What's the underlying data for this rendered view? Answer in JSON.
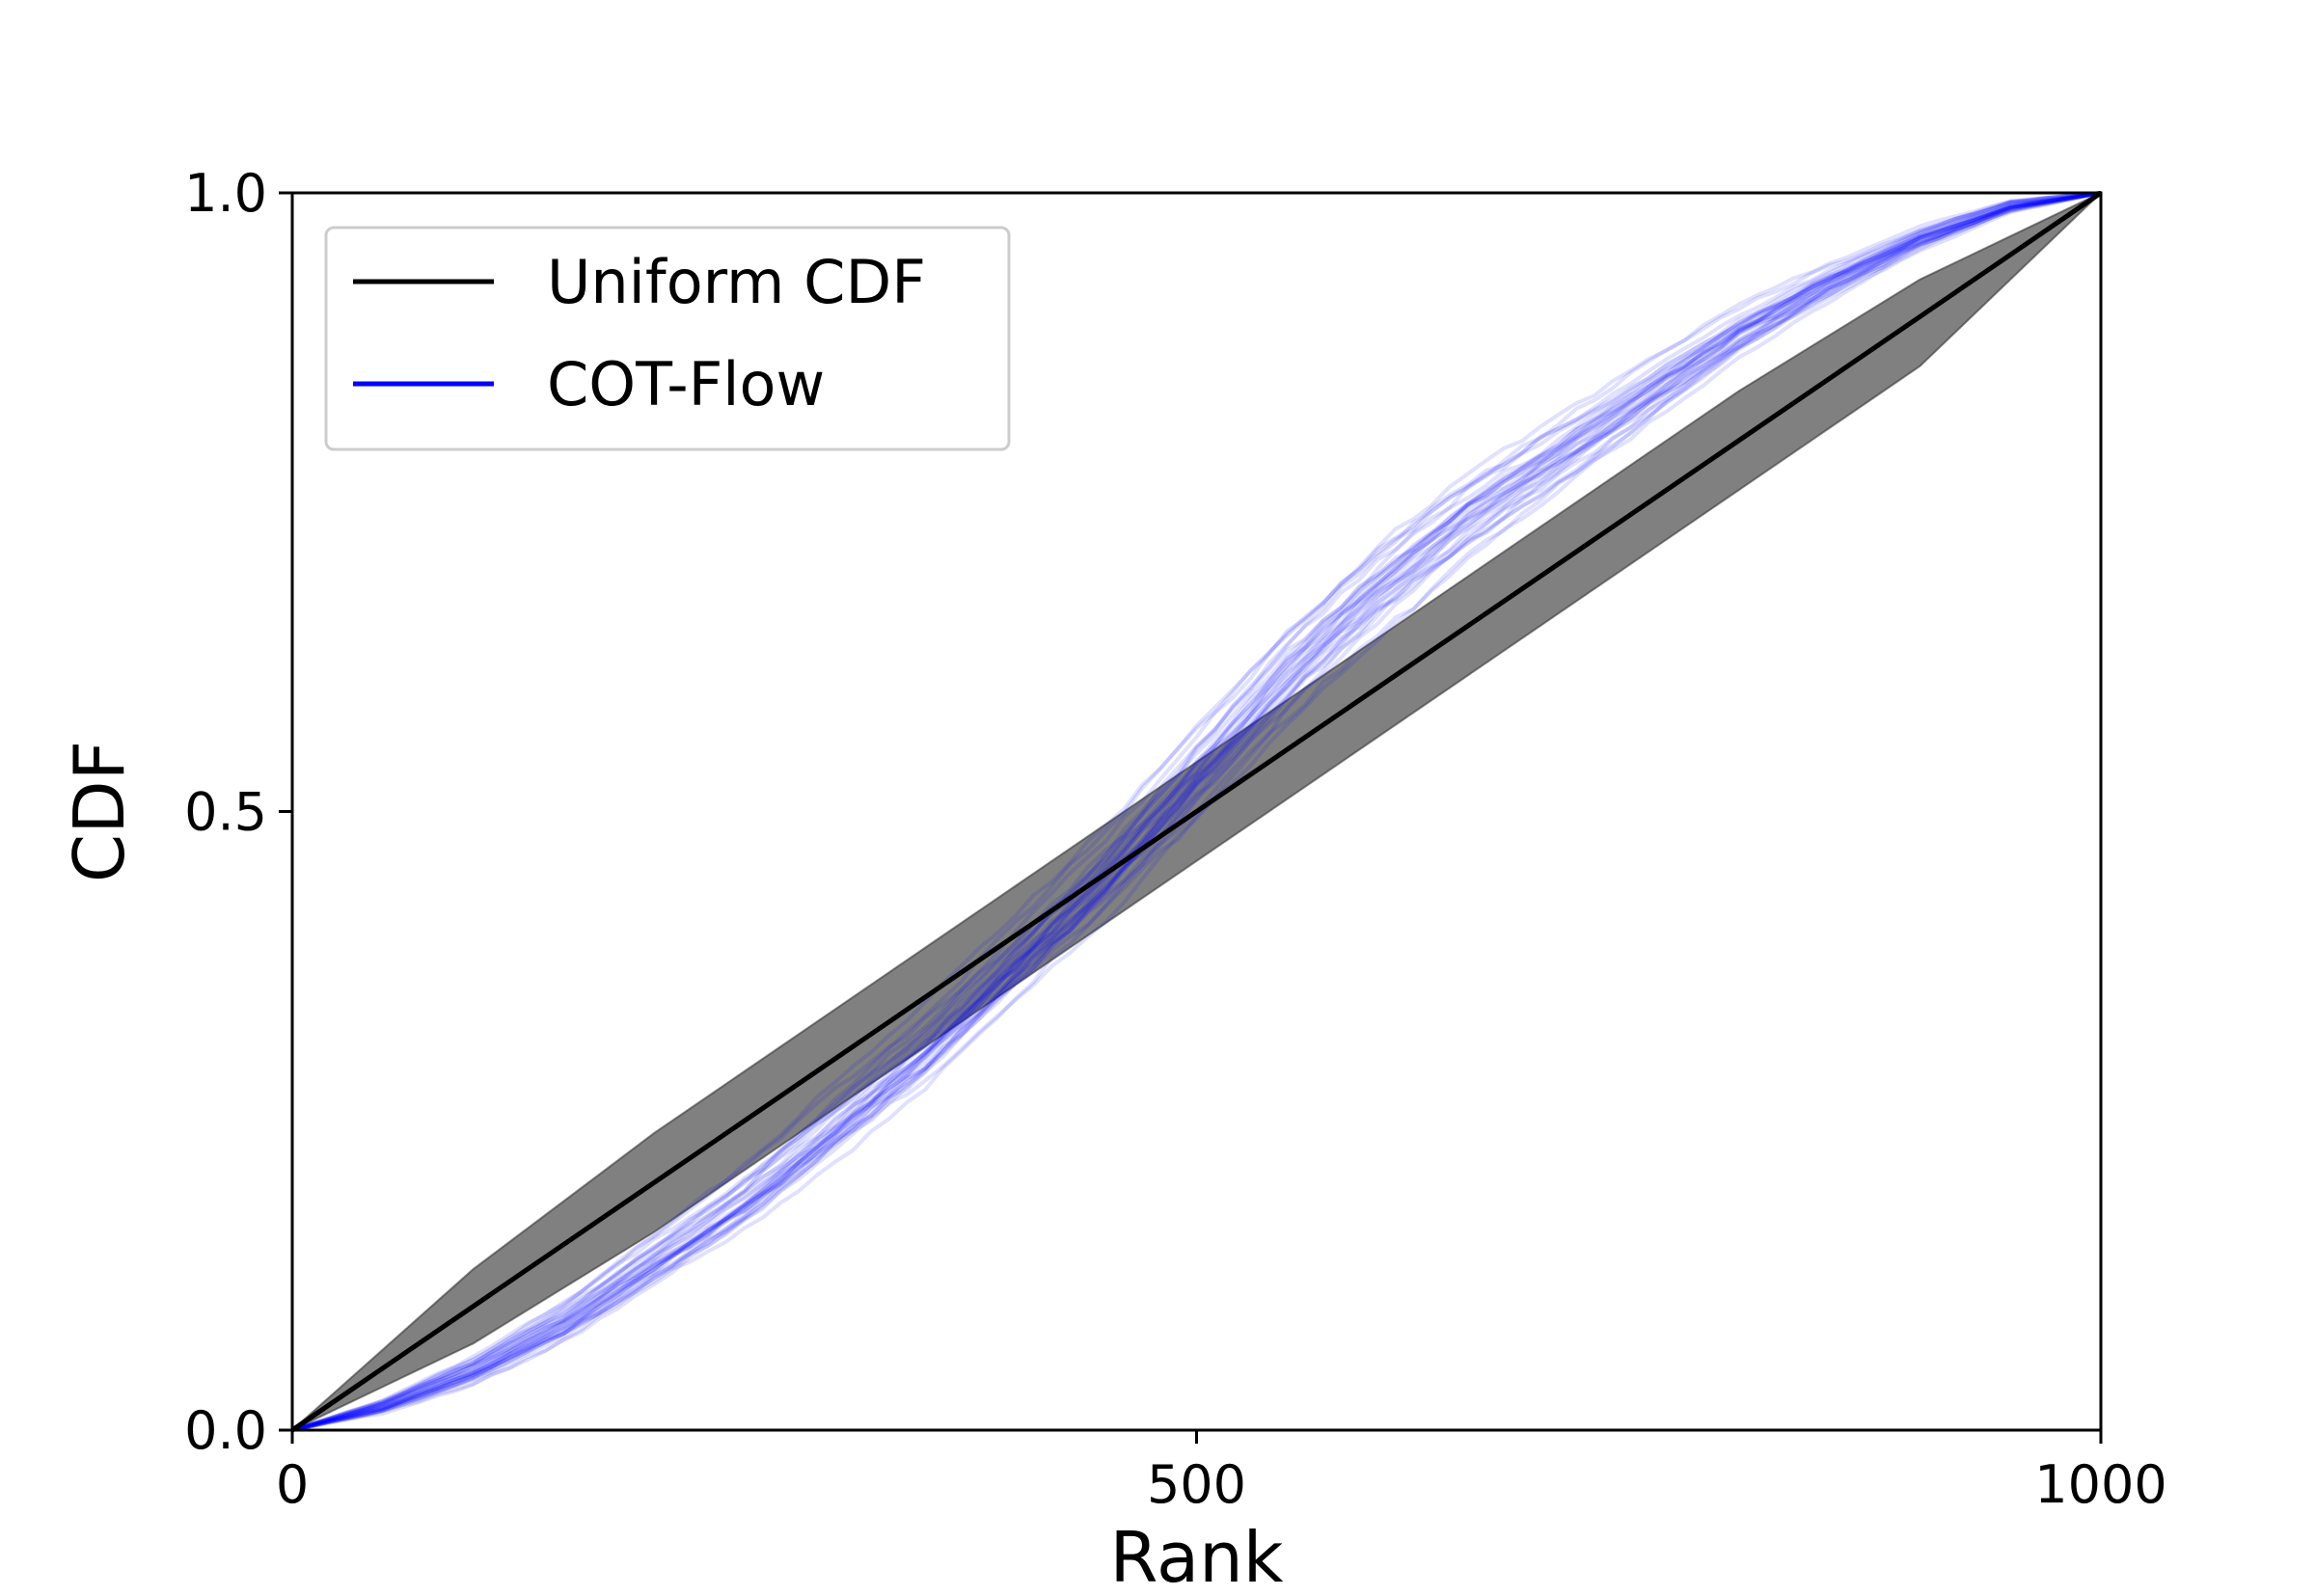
{
  "chart_data": {
    "type": "line",
    "title": "",
    "xlabel": "Rank",
    "ylabel": "CDF",
    "xlim": [
      0,
      1000
    ],
    "ylim": [
      0,
      1
    ],
    "x_ticks": [
      "0",
      "500",
      "1000"
    ],
    "y_ticks": [
      "0.0",
      "0.5",
      "1.0"
    ],
    "x_tick_values": [
      0,
      500,
      1000
    ],
    "y_tick_values": [
      0.0,
      0.5,
      1.0
    ],
    "grid": false,
    "legend_position": "top-left",
    "series": [
      {
        "name": "Uniform CDF",
        "color": "#000000",
        "x": [
          0,
          1000
        ],
        "y": [
          0,
          1
        ]
      },
      {
        "name": "COT-Flow",
        "color": "#0000ff",
        "opacity": 0.12,
        "curve_count": 30,
        "x": [
          0,
          50,
          100,
          150,
          200,
          250,
          300,
          350,
          400,
          450,
          500,
          550,
          600,
          650,
          700,
          750,
          800,
          850,
          900,
          950,
          1000
        ],
        "y": [
          0,
          0.02,
          0.05,
          0.09,
          0.14,
          0.19,
          0.25,
          0.31,
          0.38,
          0.45,
          0.53,
          0.61,
          0.68,
          0.74,
          0.79,
          0.84,
          0.89,
          0.93,
          0.965,
          0.99,
          1.0
        ]
      }
    ],
    "confidence_band": {
      "color": "#808080",
      "x": [
        0,
        100,
        200,
        300,
        400,
        500,
        600,
        700,
        800,
        900,
        1000
      ],
      "lower": [
        0,
        0.07,
        0.16,
        0.26,
        0.36,
        0.46,
        0.56,
        0.66,
        0.76,
        0.86,
        1.0
      ],
      "upper": [
        0,
        0.13,
        0.24,
        0.34,
        0.44,
        0.54,
        0.64,
        0.74,
        0.84,
        0.93,
        1.0
      ]
    }
  }
}
